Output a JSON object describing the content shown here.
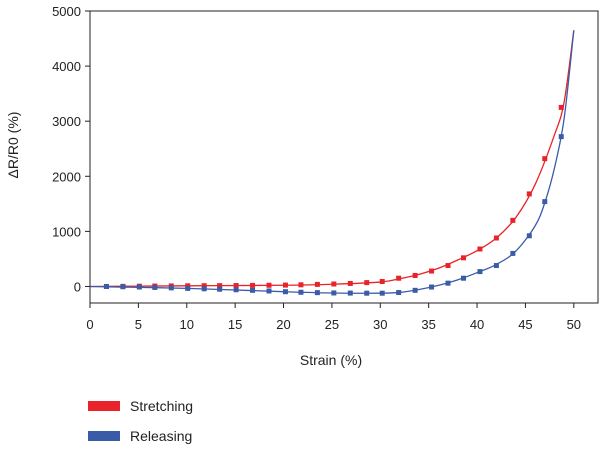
{
  "chart_data": {
    "type": "line",
    "xlabel": "Strain (%)",
    "ylabel": "ΔR/R0 (%)",
    "xlim": [
      0,
      52.5
    ],
    "ylim": [
      -300,
      5000
    ],
    "x_ticks": [
      "0",
      "5",
      "10",
      "15",
      "20",
      "25",
      "30",
      "35",
      "40",
      "45",
      "50"
    ],
    "y_ticks": [
      "0",
      "1000",
      "2000",
      "3000",
      "4000",
      "5000"
    ],
    "legend_position": "bottom-left",
    "series": [
      {
        "name": "Stretching",
        "color": "#e8232a",
        "points": [
          [
            1.7,
            0
          ],
          [
            3.4,
            2
          ],
          [
            5.1,
            5
          ],
          [
            6.7,
            8
          ],
          [
            8.4,
            10
          ],
          [
            10.1,
            12
          ],
          [
            11.8,
            14
          ],
          [
            13.4,
            15
          ],
          [
            15.1,
            17
          ],
          [
            16.8,
            20
          ],
          [
            18.5,
            22
          ],
          [
            20.2,
            25
          ],
          [
            21.8,
            30
          ],
          [
            23.5,
            38
          ],
          [
            25.2,
            45
          ],
          [
            26.9,
            55
          ],
          [
            28.6,
            70
          ],
          [
            30.2,
            90
          ],
          [
            31.9,
            150
          ],
          [
            33.6,
            200
          ],
          [
            35.3,
            280
          ],
          [
            37.0,
            380
          ],
          [
            38.6,
            520
          ],
          [
            40.3,
            680
          ],
          [
            42.0,
            880
          ],
          [
            43.7,
            1200
          ],
          [
            45.4,
            1680
          ],
          [
            47.0,
            2320
          ],
          [
            48.7,
            3250
          ]
        ],
        "curve": [
          [
            0,
            0
          ],
          [
            10,
            12
          ],
          [
            20,
            22
          ],
          [
            25,
            40
          ],
          [
            30,
            80
          ],
          [
            32,
            140
          ],
          [
            34,
            220
          ],
          [
            36,
            330
          ],
          [
            38,
            480
          ],
          [
            40,
            650
          ],
          [
            42,
            880
          ],
          [
            44,
            1250
          ],
          [
            46,
            1850
          ],
          [
            48,
            2750
          ],
          [
            49,
            3350
          ],
          [
            50,
            4650
          ]
        ]
      },
      {
        "name": "Releasing",
        "color": "#3a5ba8",
        "points": [
          [
            1.7,
            0
          ],
          [
            3.4,
            -5
          ],
          [
            5.1,
            -10
          ],
          [
            6.7,
            -18
          ],
          [
            8.4,
            -25
          ],
          [
            10.1,
            -35
          ],
          [
            11.8,
            -42
          ],
          [
            13.4,
            -50
          ],
          [
            15.1,
            -60
          ],
          [
            16.8,
            -70
          ],
          [
            18.5,
            -82
          ],
          [
            20.2,
            -95
          ],
          [
            21.8,
            -105
          ],
          [
            23.5,
            -112
          ],
          [
            25.2,
            -118
          ],
          [
            26.9,
            -120
          ],
          [
            28.6,
            -122
          ],
          [
            30.2,
            -122
          ],
          [
            31.9,
            -110
          ],
          [
            33.6,
            -70
          ],
          [
            35.3,
            -10
          ],
          [
            37.0,
            60
          ],
          [
            38.6,
            150
          ],
          [
            40.3,
            270
          ],
          [
            42.0,
            380
          ],
          [
            43.7,
            600
          ],
          [
            45.4,
            920
          ],
          [
            47.0,
            1540
          ],
          [
            48.7,
            2720
          ]
        ],
        "curve": [
          [
            0,
            0
          ],
          [
            10,
            -35
          ],
          [
            20,
            -95
          ],
          [
            25,
            -118
          ],
          [
            30,
            -122
          ],
          [
            32,
            -108
          ],
          [
            34,
            -55
          ],
          [
            36,
            20
          ],
          [
            38,
            120
          ],
          [
            40,
            250
          ],
          [
            42,
            400
          ],
          [
            44,
            640
          ],
          [
            46,
            1100
          ],
          [
            47,
            1520
          ],
          [
            48,
            2150
          ],
          [
            49,
            3050
          ],
          [
            50,
            4650
          ]
        ]
      }
    ]
  }
}
